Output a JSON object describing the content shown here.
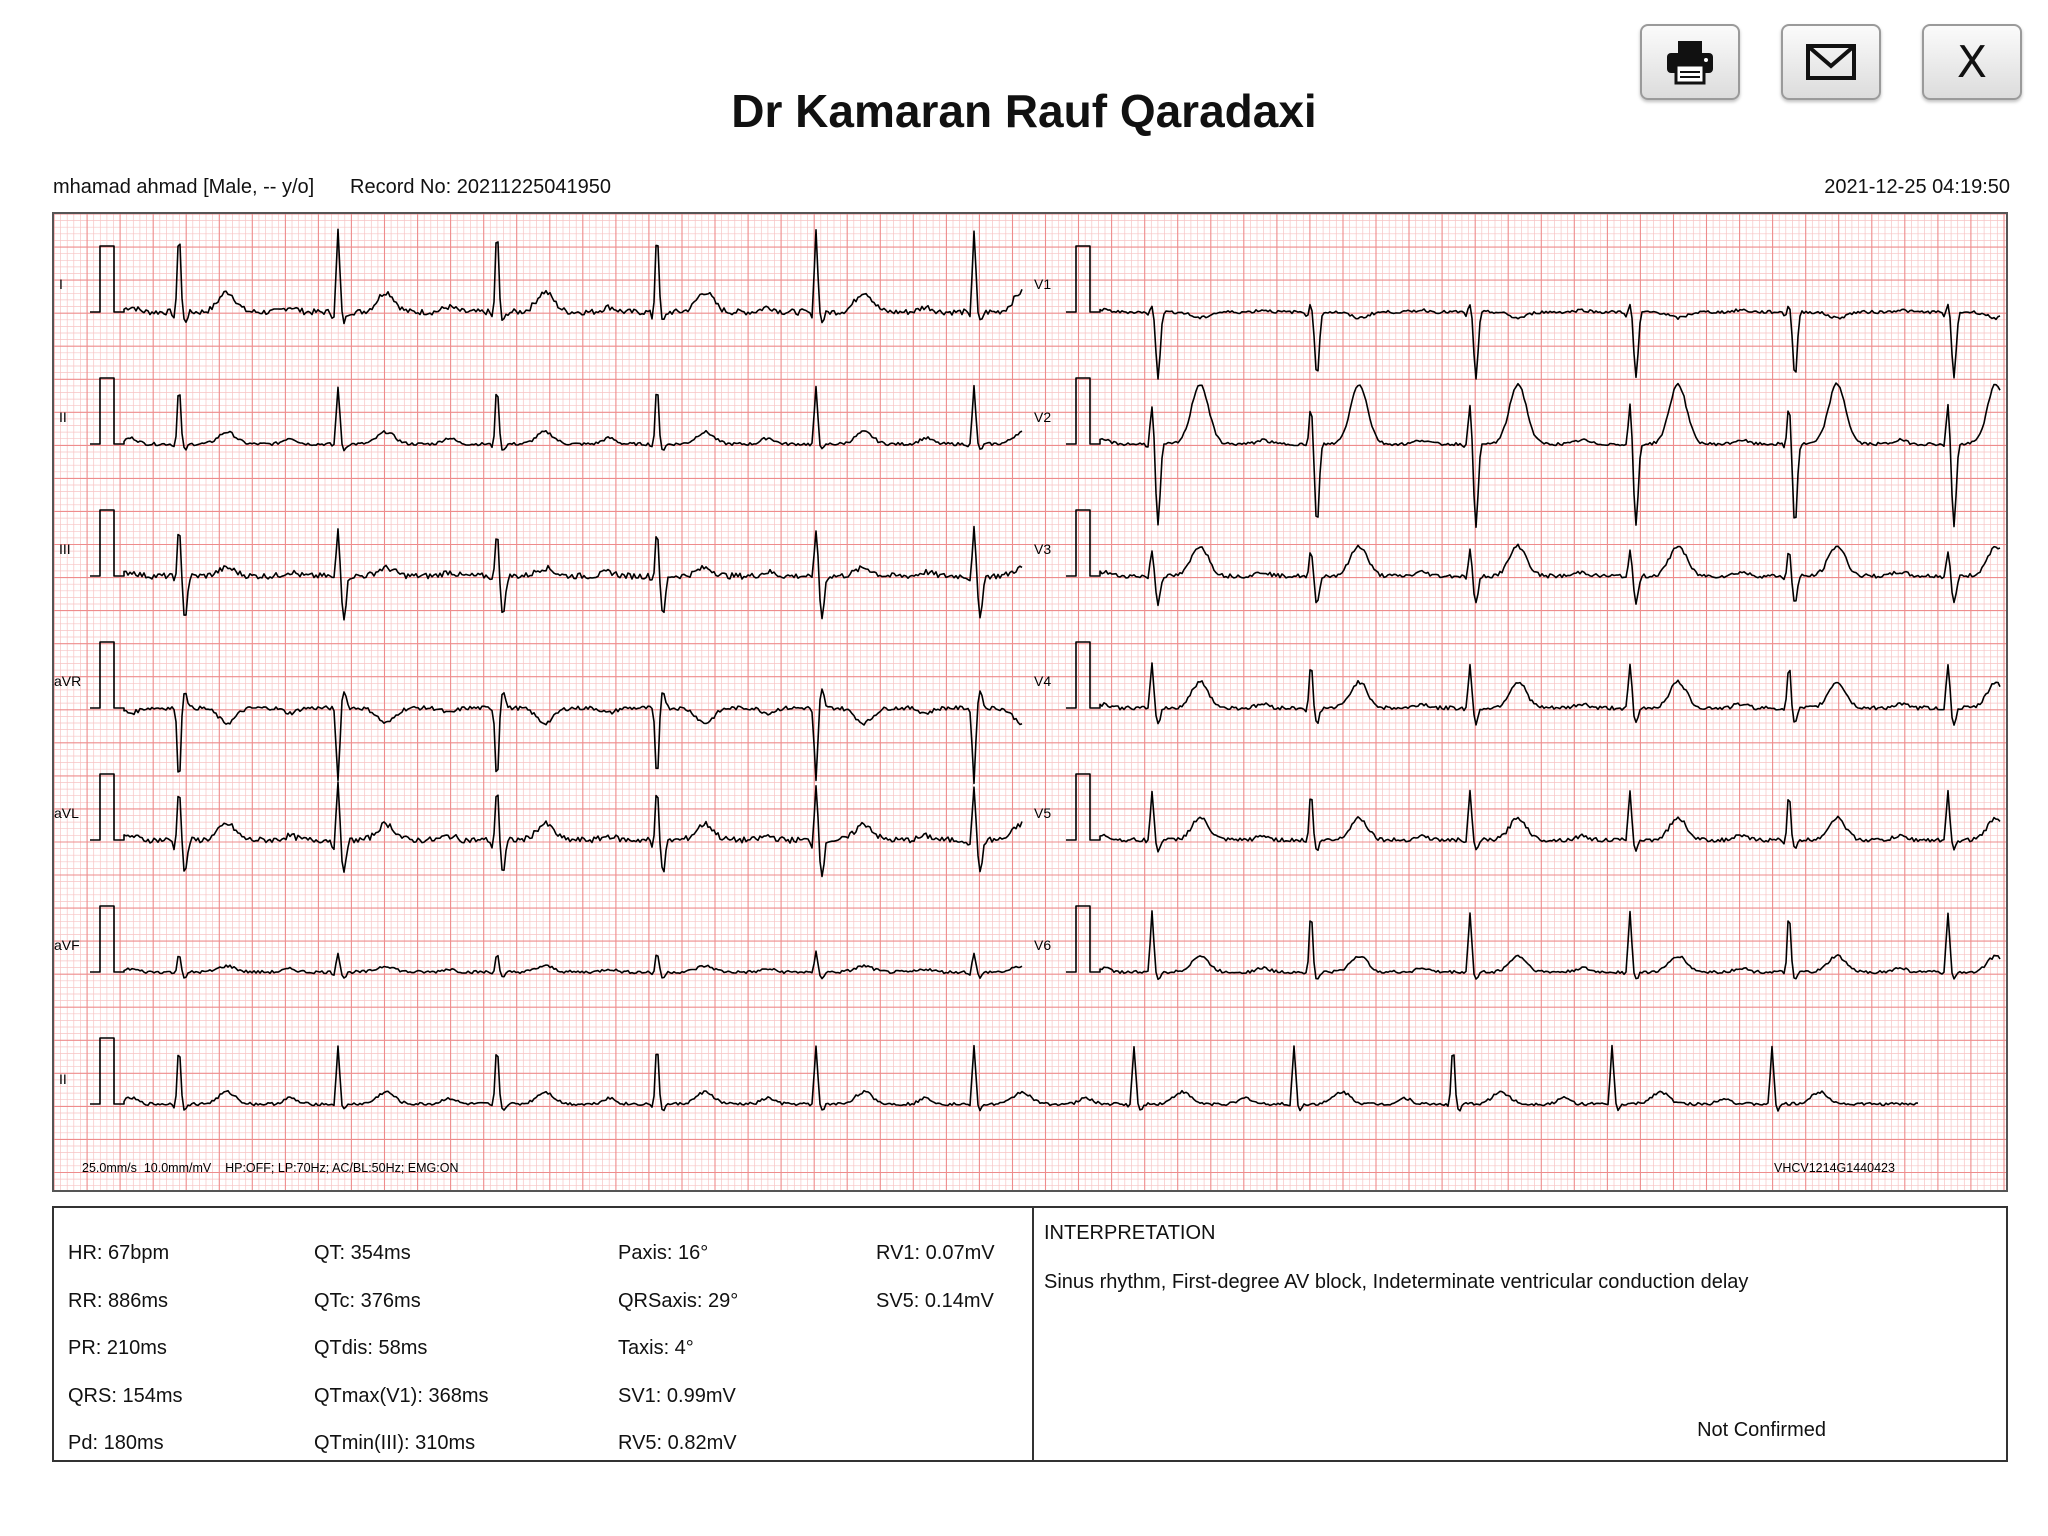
{
  "toolbar": {
    "print_icon": "printer-icon",
    "email_icon": "envelope-icon",
    "close_label": "X"
  },
  "title": "Dr Kamaran Rauf Qaradaxi",
  "patient": "mhamad ahmad [Male, -- y/o]",
  "record": "Record No: 20211225041950",
  "timestamp": "2021-12-25 04:19:50",
  "leads_left": [
    "I",
    "II",
    "III",
    "aVR",
    "aVL",
    "aVF",
    "II"
  ],
  "leads_right": [
    "V1",
    "V2",
    "V3",
    "V4",
    "V5",
    "V6"
  ],
  "footer_left": "25.0mm/s  10.0mm/mV    HP:OFF; LP:70Hz; AC/BL:50Hz; EMG:ON",
  "footer_right": "VHCV1214G1440423",
  "colors": {
    "grid_minor": "#f7c4c4",
    "grid_major": "#ee8c8c",
    "trace": "#000000"
  },
  "measurements": {
    "col1": [
      "HR: 67bpm",
      "RR: 886ms",
      "PR: 210ms",
      "QRS: 154ms",
      "Pd: 180ms"
    ],
    "col2": [
      "QT: 354ms",
      "QTc: 376ms",
      "QTdis: 58ms",
      "QTmax(V1): 368ms",
      "QTmin(III): 310ms"
    ],
    "col3": [
      "Paxis: 16°",
      "QRSaxis: 29°",
      "Taxis: 4°",
      "SV1: 0.99mV",
      "RV5: 0.82mV"
    ],
    "col4": [
      "RV1: 0.07mV",
      "SV5: 0.14mV"
    ]
  },
  "interpretation": {
    "heading": "INTERPRETATION",
    "text": "Sinus rhythm, First-degree AV block, Indeterminate ventricular conduction delay",
    "status": "Not Confirmed"
  }
}
